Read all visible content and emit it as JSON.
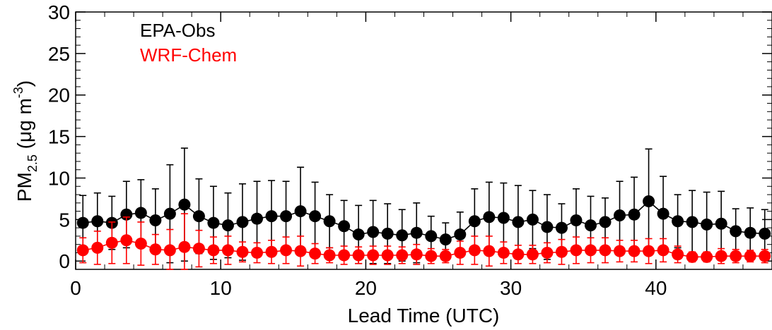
{
  "chart_data": {
    "type": "scatter",
    "title": "",
    "xlabel": "Lead Time (UTC)",
    "ylabel": "PM",
    "ylabel_subscript": "2.5",
    "ylabel_units": " (μg m",
    "ylabel_units_superscript": "-3",
    "ylabel_units_close": ")",
    "xlim": [
      0,
      48
    ],
    "ylim": [
      -1,
      30
    ],
    "x_ticks": [
      0,
      10,
      20,
      30,
      40
    ],
    "y_ticks": [
      0,
      5,
      10,
      15,
      20,
      25,
      30
    ],
    "grid": false,
    "legend_position": "top-left",
    "series": [
      {
        "name": "EPA-Obs",
        "color": "#000000",
        "x": [
          0.5,
          1.5,
          2.5,
          3.5,
          4.5,
          5.5,
          6.5,
          7.5,
          8.5,
          9.5,
          10.5,
          11.5,
          12.5,
          13.5,
          14.5,
          15.5,
          16.5,
          17.5,
          18.5,
          19.5,
          20.5,
          21.5,
          22.5,
          23.5,
          24.5,
          25.5,
          26.5,
          27.5,
          28.5,
          29.5,
          30.5,
          31.5,
          32.5,
          33.5,
          34.5,
          35.5,
          36.5,
          37.5,
          38.5,
          39.5,
          40.5,
          41.5,
          42.5,
          43.5,
          44.5,
          45.5,
          46.5,
          47.5
        ],
        "y": [
          4.6,
          4.8,
          4.6,
          5.6,
          5.8,
          4.9,
          5.7,
          6.8,
          5.4,
          4.6,
          4.3,
          4.7,
          5.1,
          5.4,
          5.4,
          6.0,
          5.4,
          4.8,
          4.2,
          3.2,
          3.5,
          3.3,
          3.1,
          3.4,
          3.0,
          2.6,
          3.2,
          4.8,
          5.3,
          5.2,
          4.7,
          5.0,
          4.1,
          4.0,
          4.9,
          4.3,
          4.7,
          5.5,
          5.6,
          7.2,
          5.7,
          4.8,
          4.7,
          4.4,
          4.5,
          3.6,
          3.4,
          3.3
        ],
        "err": [
          3.3,
          3.4,
          3.2,
          4.0,
          4.0,
          3.8,
          5.9,
          6.8,
          4.5,
          4.4,
          3.9,
          4.6,
          4.5,
          4.3,
          4.2,
          5.3,
          4.1,
          3.2,
          3.1,
          3.5,
          3.8,
          3.6,
          3.1,
          3.6,
          2.4,
          2.0,
          2.7,
          3.9,
          4.2,
          4.2,
          4.4,
          3.5,
          3.9,
          2.9,
          3.8,
          3.5,
          2.9,
          4.1,
          4.5,
          6.3,
          4.5,
          3.2,
          3.8,
          3.9,
          3.9,
          2.7,
          3.0,
          2.9
        ]
      },
      {
        "name": "WRF-Chem",
        "color": "#ff0000",
        "x": [
          0.5,
          1.5,
          2.5,
          3.5,
          4.5,
          5.5,
          6.5,
          7.5,
          8.5,
          9.5,
          10.5,
          11.5,
          12.5,
          13.5,
          14.5,
          15.5,
          16.5,
          17.5,
          18.5,
          19.5,
          20.5,
          21.5,
          22.5,
          23.5,
          24.5,
          25.5,
          26.5,
          27.5,
          28.5,
          29.5,
          30.5,
          31.5,
          32.5,
          33.5,
          34.5,
          35.5,
          36.5,
          37.5,
          38.5,
          39.5,
          40.5,
          41.5,
          42.5,
          43.5,
          44.5,
          45.5,
          46.5,
          47.5
        ],
        "y": [
          1.3,
          1.6,
          2.2,
          2.5,
          2.1,
          1.4,
          1.3,
          1.7,
          1.5,
          1.3,
          1.3,
          1.1,
          1.0,
          1.1,
          1.3,
          1.2,
          0.9,
          0.7,
          0.7,
          0.7,
          0.7,
          0.7,
          0.7,
          0.8,
          0.6,
          0.6,
          1.0,
          1.3,
          1.2,
          1.0,
          0.8,
          0.8,
          1.0,
          1.1,
          1.3,
          1.3,
          1.3,
          1.2,
          1.2,
          1.2,
          1.3,
          0.8,
          0.5,
          0.5,
          0.6,
          0.6,
          0.6,
          0.6
        ],
        "err": [
          1.5,
          2.0,
          2.5,
          2.8,
          2.6,
          1.8,
          2.5,
          4.0,
          2.2,
          1.6,
          1.7,
          1.2,
          1.2,
          1.4,
          1.6,
          1.8,
          1.2,
          0.9,
          1.1,
          1.0,
          1.1,
          1.1,
          1.0,
          1.2,
          0.9,
          0.8,
          1.4,
          1.7,
          1.8,
          1.3,
          1.1,
          1.1,
          1.2,
          1.5,
          1.6,
          1.5,
          1.5,
          1.3,
          1.3,
          1.5,
          1.4,
          1.0,
          0.6,
          0.6,
          0.9,
          0.8,
          0.7,
          0.8
        ]
      }
    ]
  }
}
